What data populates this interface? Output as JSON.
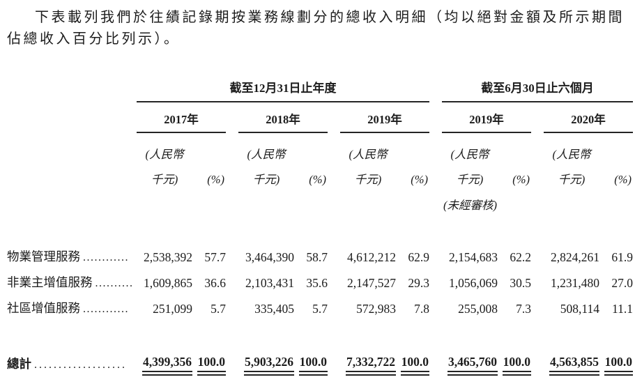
{
  "intro": "下表載列我們於往績記錄期按業務線劃分的總收入明細（均以絕對金額及所示期間佔總收入百分比列示）。",
  "table": {
    "group_headers": [
      {
        "label": "截至12月31日止年度"
      },
      {
        "label": "截至6月30日止六個月"
      }
    ],
    "years": [
      "2017年",
      "2018年",
      "2019年",
      "2019年",
      "2020年"
    ],
    "unit_line1": "(人民幣",
    "unit_line2": "千元)",
    "pct_header": "(%)",
    "unaudited_note": "(未經審核)",
    "rows": [
      {
        "label": "物業管理服務",
        "leader": "............",
        "values": [
          "2,538,392",
          "57.7",
          "3,464,390",
          "58.7",
          "4,612,212",
          "62.9",
          "2,154,683",
          "62.2",
          "2,824,261",
          "61.9"
        ]
      },
      {
        "label": "非業主增值服務",
        "leader": "..........",
        "values": [
          "1,609,865",
          "36.6",
          "2,103,431",
          "35.6",
          "2,147,527",
          "29.3",
          "1,056,069",
          "30.5",
          "1,231,480",
          "27.0"
        ]
      },
      {
        "label": "社區增值服務",
        "leader": "............",
        "values": [
          "251,099",
          "5.7",
          "335,405",
          "5.7",
          "572,983",
          "7.8",
          "255,008",
          "7.3",
          "508,114",
          "11.1"
        ]
      }
    ],
    "total": {
      "label": "總計",
      "leader": "...................",
      "values": [
        "4,399,356",
        "100.0",
        "5,903,226",
        "100.0",
        "7,332,722",
        "100.0",
        "3,465,760",
        "100.0",
        "4,563,855",
        "100.0"
      ]
    }
  }
}
